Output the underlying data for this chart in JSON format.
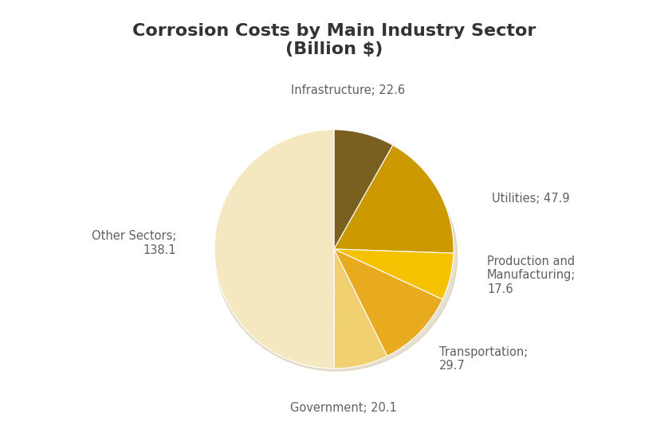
{
  "title": "Corrosion Costs by Main Industry Sector\n(Billion $)",
  "title_fontsize": 16,
  "values": [
    22.6,
    47.9,
    17.6,
    29.7,
    20.1,
    138.1
  ],
  "colors": [
    "#7a6020",
    "#cc9a00",
    "#f5c200",
    "#e8ab20",
    "#f0d070",
    "#f5e8c0"
  ],
  "startangle": 90,
  "background_color": "#ffffff",
  "text_color": "#606060",
  "label_fontsize": 10.5,
  "shadow_color": "#c8b89a"
}
